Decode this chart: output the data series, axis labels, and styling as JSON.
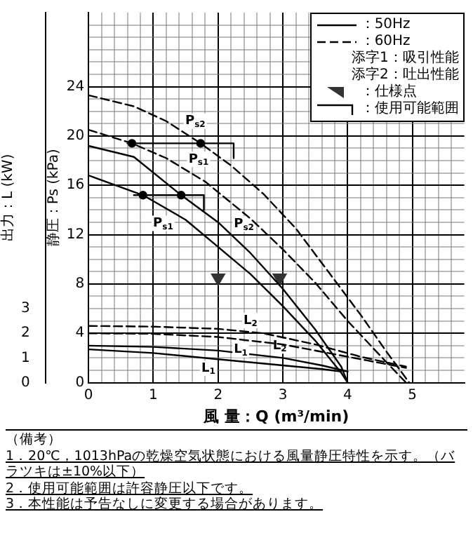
{
  "chart_data": {
    "type": "line",
    "xlabel": "風 量：Q (m³/min)",
    "ylabel": "静圧：Ps (kPa)",
    "y2label": "出力：L (kW)",
    "xlim": [
      0,
      5.8
    ],
    "xticks": [
      0,
      {
        "value": 0.2,
        "label": null
      },
      {
        "value": 0.4,
        "label": null
      },
      {
        "value": 0.6,
        "label": null
      },
      {
        "value": 0.8,
        "label": null
      },
      1,
      {
        "value": 1.2,
        "label": null
      },
      {
        "value": 1.4,
        "label": null
      },
      {
        "value": 1.6,
        "label": null
      },
      {
        "value": 1.8,
        "label": null
      },
      2,
      {
        "value": 2.2,
        "label": null
      },
      {
        "value": 2.4,
        "label": null
      },
      {
        "value": 2.6,
        "label": null
      },
      {
        "value": 2.8,
        "label": null
      },
      3,
      {
        "value": 3.2,
        "label": null
      },
      {
        "value": 3.4,
        "label": null
      },
      {
        "value": 3.6,
        "label": null
      },
      {
        "value": 3.8,
        "label": null
      },
      4,
      {
        "value": 4.2,
        "label": null
      },
      {
        "value": 4.4,
        "label": null
      },
      {
        "value": 4.6,
        "label": null
      },
      {
        "value": 4.8,
        "label": null
      },
      5,
      {
        "value": 5.2,
        "label": null
      },
      {
        "value": 5.4,
        "label": null
      },
      {
        "value": 5.6,
        "label": null
      }
    ],
    "ylim": [
      0,
      30
    ],
    "yticks": [
      0,
      {
        "value": 1,
        "label": null
      },
      {
        "value": 2,
        "label": null
      },
      {
        "value": 3,
        "label": null
      },
      4,
      {
        "value": 5,
        "label": null
      },
      {
        "value": 6,
        "label": null
      },
      {
        "value": 7,
        "label": null
      },
      8,
      {
        "value": 9,
        "label": null
      },
      {
        "value": 10,
        "label": null
      },
      {
        "value": 11,
        "label": null
      },
      12,
      {
        "value": 13,
        "label": null
      },
      {
        "value": 14,
        "label": null
      },
      {
        "value": 15,
        "label": null
      },
      16,
      {
        "value": 17,
        "label": null
      },
      {
        "value": 18,
        "label": null
      },
      {
        "value": 19,
        "label": null
      },
      20,
      {
        "value": 21,
        "label": null
      },
      {
        "value": 22,
        "label": null
      },
      {
        "value": 23,
        "label": null
      },
      24,
      {
        "value": 25,
        "label": null
      },
      {
        "value": 26,
        "label": null
      },
      {
        "value": 27,
        "label": null
      },
      {
        "value": 28,
        "label": null
      },
      {
        "value": 29,
        "label": null
      }
    ],
    "y2lim": [
      0,
      15
    ],
    "y2ticks": [
      0,
      1,
      2,
      3
    ],
    "grid": true,
    "legend": "top right",
    "marker": "none",
    "series": [
      {
        "color": "#000000",
        "line_style": "dashed",
        "x": [
          0,
          0.7,
          1.2,
          1.73,
          2.2,
          2.7,
          3.2,
          3.7,
          4.2,
          4.6,
          4.95
        ],
        "values": [
          23.3,
          22.4,
          21.2,
          19.4,
          17.6,
          15.3,
          12.5,
          9,
          5.5,
          2.5,
          0
        ]
      },
      {
        "color": "#000000",
        "line_style": "dashed",
        "x": [
          0,
          0.67,
          1.2,
          1.8,
          2.5,
          3,
          3.5,
          4,
          4.5,
          4.9
        ],
        "values": [
          20.5,
          19.4,
          18.2,
          16.3,
          13.3,
          10.8,
          8.1,
          5,
          2.2,
          0
        ]
      },
      {
        "color": "#000000",
        "line_style": "solid",
        "x": [
          0,
          0.7,
          1.43,
          2,
          2.5,
          3,
          3.5,
          3.9,
          4
        ],
        "values": [
          19.2,
          18.3,
          15.2,
          13,
          10.5,
          7.6,
          4.3,
          1.3,
          0
        ]
      },
      {
        "color": "#000000",
        "line_style": "solid",
        "x": [
          0,
          0.84,
          1.5,
          2,
          2.5,
          3,
          3.5,
          3.9,
          4
        ],
        "values": [
          16.8,
          15.2,
          13.2,
          11,
          8.8,
          6.2,
          3.4,
          0.8,
          0
        ]
      },
      {
        "color": "#000000",
        "line_style": "dashed",
        "axis": "y2",
        "x": [
          0,
          1,
          2,
          2.7,
          3.5,
          4.2,
          4.9
        ],
        "values": [
          2.3,
          2.27,
          2.18,
          2,
          1.55,
          1.05,
          0.65
        ]
      },
      {
        "color": "#000000",
        "line_style": "dashed",
        "axis": "y2",
        "x": [
          0,
          1,
          2,
          3,
          3.7,
          4.3,
          4.9
        ],
        "values": [
          2,
          1.98,
          1.85,
          1.55,
          1.2,
          0.9,
          0.6
        ]
      },
      {
        "color": "#000000",
        "line_style": "solid",
        "axis": "y2",
        "x": [
          0,
          1,
          2,
          3,
          3.6,
          4
        ],
        "values": [
          1.5,
          1.45,
          1.3,
          1,
          0.7,
          0.45
        ]
      },
      {
        "color": "#000000",
        "line_style": "solid",
        "axis": "y2",
        "x": [
          0,
          1,
          2,
          3,
          3.6,
          3.9
        ],
        "values": [
          1.35,
          1.2,
          0.95,
          0.7,
          0.55,
          0.45
        ]
      },
      {
        "type": "scatter",
        "marker": "circle",
        "color": "#000000",
        "x": [
          0.67,
          1.73,
          0.84,
          1.43
        ],
        "values": [
          19.4,
          19.4,
          15.2,
          15.2
        ]
      },
      {
        "type": "scatter",
        "marker": "triangle",
        "name": "：仕様点",
        "color": "#333333",
        "x": [
          2,
          2.95
        ],
        "values": [
          8.5,
          8.5
        ]
      },
      {
        "name": "：使用可能範囲",
        "color": "#000000",
        "line_style": "solid",
        "x": [
          0.6,
          2.24,
          2.24
        ],
        "values": [
          19.4,
          19.4,
          18.2
        ]
      },
      {
        "color": "#000000",
        "line_style": "solid",
        "x": [
          0.7,
          1.78,
          1.78
        ],
        "values": [
          15.2,
          15.2,
          14
        ]
      }
    ],
    "annotations": [
      "：50Hz",
      "：60Hz",
      "添字1：吸引性能",
      "添字2：吐出性能",
      {
        "text": "P$_{s2}$",
        "x": 1.45,
        "y": 20.35
      },
      {
        "text": "P$_{s1}$",
        "x": 1.5,
        "y": 17.25
      },
      {
        "text": "P$_{s2}$",
        "x": 2.2,
        "y": 12
      },
      {
        "text": "P$_{s1}$",
        "x": 1.35,
        "y": 13.65
      },
      {
        "text": "L$_{2}$",
        "x": 2.35,
        "y": 4.18
      },
      {
        "text": "L$_{1}$",
        "x": 2.5,
        "y": 3.4
      },
      {
        "text": "L$_{2}$",
        "x": 2.8,
        "y": 2.12
      },
      {
        "text": "L$_{1}$",
        "x": 2,
        "y": 1.9
      },
      "（備考）",
      "1．20℃，1013hPaの乾燥空気状態における風量静圧特性を示す。（バラツキは±10%以下）",
      "2．使用可能範囲は許容静圧以下です。",
      "3．本性能は予告なしに変更する場合があります。"
    ]
  }
}
